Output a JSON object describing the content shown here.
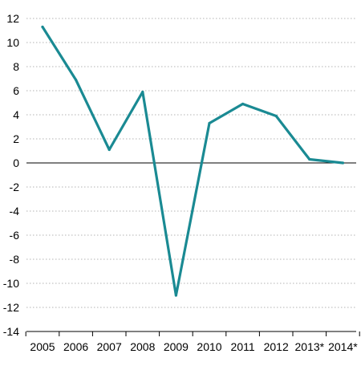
{
  "chart_data": {
    "type": "line",
    "categories": [
      "2005",
      "2006",
      "2007",
      "2008",
      "2009",
      "2010",
      "2011",
      "2012",
      "2013*",
      "2014*"
    ],
    "series": [
      {
        "values": [
          11.3,
          6.9,
          1.1,
          5.9,
          -11.0,
          3.3,
          4.9,
          3.9,
          0.3,
          0.0
        ]
      }
    ],
    "yticks": [
      "12",
      "10",
      "8",
      "6",
      "4",
      "2",
      "0",
      "-2",
      "-4",
      "-6",
      "-8",
      "-10",
      "-12",
      "-14"
    ],
    "ylim": [
      -14,
      12
    ],
    "grid": "horizontal dotted",
    "colors": {
      "line": "#1a8a93",
      "zero_line": "#000000",
      "grid": "#b3b3b3",
      "axis": "#000000"
    }
  }
}
